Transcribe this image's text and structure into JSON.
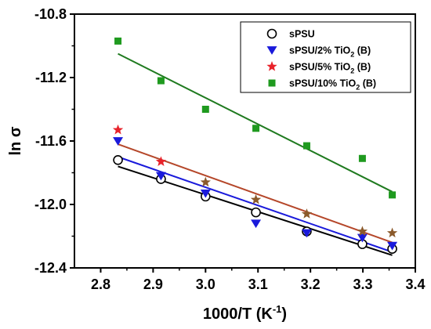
{
  "chart_data": {
    "type": "scatter",
    "xlabel": "1000/T (K",
    "xlabel_sup": "-1",
    "xlabel_close": ")",
    "ylabel": "ln σ",
    "xlim": [
      2.75,
      3.4
    ],
    "ylim": [
      -12.4,
      -10.8
    ],
    "x_ticks": [
      "2.8",
      "2.9",
      "3.0",
      "3.1",
      "3.2",
      "3.3",
      "3.4"
    ],
    "y_ticks": [
      "-10.8",
      "-11.2",
      "-11.6",
      "-12.0",
      "-12.4"
    ],
    "legend_position": "top-right",
    "series": [
      {
        "name": "sPSU",
        "name_parts": [
          "sPSU",
          "",
          ""
        ],
        "marker": "open-circle",
        "color": "#000000",
        "line_color": "#000000",
        "x": [
          2.833,
          2.915,
          3.0,
          3.096,
          3.193,
          3.299,
          3.356
        ],
        "y": [
          -11.72,
          -11.84,
          -11.95,
          -12.05,
          -12.17,
          -12.25,
          -12.28
        ],
        "fit": {
          "x": [
            2.833,
            3.356
          ],
          "y": [
            -11.76,
            -12.32
          ]
        }
      },
      {
        "name": "sPSU/2% TiO2 (B)",
        "name_parts": [
          "sPSU/2% TiO",
          "2",
          " (B)"
        ],
        "marker": "down-triangle",
        "color": "#1a1adb",
        "line_color": "#1a1adb",
        "x": [
          2.833,
          2.915,
          3.0,
          3.096,
          3.193,
          3.299,
          3.356
        ],
        "y": [
          -11.6,
          -11.82,
          -11.93,
          -12.12,
          -12.18,
          -12.21,
          -12.26
        ],
        "fit": {
          "x": [
            2.833,
            3.356
          ],
          "y": [
            -11.7,
            -12.3
          ]
        }
      },
      {
        "name": "sPSU/5% TiO2 (B)",
        "name_parts": [
          "sPSU/5% TiO",
          "2",
          " (B)"
        ],
        "marker": "star",
        "color": "#e8222a",
        "color_alt": "#8b5a2b",
        "line_color": "#b5472a",
        "x": [
          2.833,
          2.915,
          3.0,
          3.096,
          3.193,
          3.299,
          3.356
        ],
        "y": [
          -11.53,
          -11.73,
          -11.86,
          -11.97,
          -12.06,
          -12.17,
          -12.18
        ],
        "fit": {
          "x": [
            2.833,
            3.356
          ],
          "y": [
            -11.62,
            -12.24
          ]
        }
      },
      {
        "name": "sPSU/10% TiO2 (B)",
        "name_parts": [
          "sPSU/10% TiO",
          "2",
          " (B)"
        ],
        "marker": "square",
        "color": "#1f9a1f",
        "line_color": "#1f7a1f",
        "x": [
          2.833,
          2.915,
          3.0,
          3.096,
          3.193,
          3.299,
          3.356
        ],
        "y": [
          -10.97,
          -11.22,
          -11.4,
          -11.52,
          -11.63,
          -11.71,
          -11.94
        ],
        "fit": {
          "x": [
            2.833,
            3.356
          ],
          "y": [
            -11.05,
            -11.92
          ]
        }
      }
    ]
  }
}
